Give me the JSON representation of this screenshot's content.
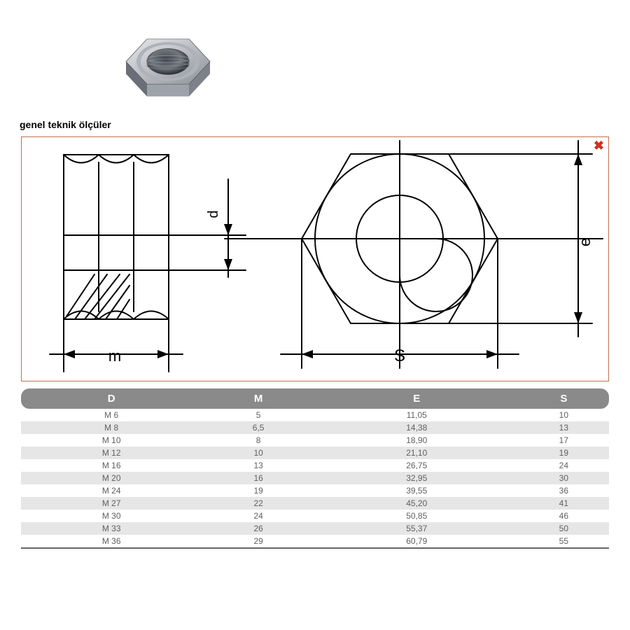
{
  "subtitle": "genel teknik ölçüler",
  "close_label": "✖",
  "diagram": {
    "dim_m": "m",
    "dim_d": "d",
    "dim_s": "S",
    "dim_e": "e",
    "stroke": "#000000",
    "stroke_width": 2,
    "hatch_color": "#000000",
    "frame_border": "#c07050",
    "close_color": "#d03020"
  },
  "photo": {
    "metal_light": "#e8e8ec",
    "metal_mid": "#b8bcc2",
    "metal_dark": "#868a92",
    "metal_deep": "#545860"
  },
  "table": {
    "header_bg": "#8a8a8a",
    "header_fg": "#ffffff",
    "row_odd_bg": "#e6e6e6",
    "row_even_bg": "#ffffff",
    "cell_fg": "#606060",
    "fontsize_header": 15,
    "fontsize_cell": 12,
    "columns": [
      "D",
      "M",
      "E",
      "S"
    ],
    "rows": [
      [
        "M 6",
        "5",
        "11,05",
        "10"
      ],
      [
        "M 8",
        "6,5",
        "14,38",
        "13"
      ],
      [
        "M 10",
        "8",
        "18,90",
        "17"
      ],
      [
        "M 12",
        "10",
        "21,10",
        "19"
      ],
      [
        "M 16",
        "13",
        "26,75",
        "24"
      ],
      [
        "M 20",
        "16",
        "32,95",
        "30"
      ],
      [
        "M 24",
        "19",
        "39,55",
        "36"
      ],
      [
        "M 27",
        "22",
        "45,20",
        "41"
      ],
      [
        "M 30",
        "24",
        "50,85",
        "46"
      ],
      [
        "M 33",
        "26",
        "55,37",
        "50"
      ],
      [
        "M 36",
        "29",
        "60,79",
        "55"
      ]
    ]
  }
}
